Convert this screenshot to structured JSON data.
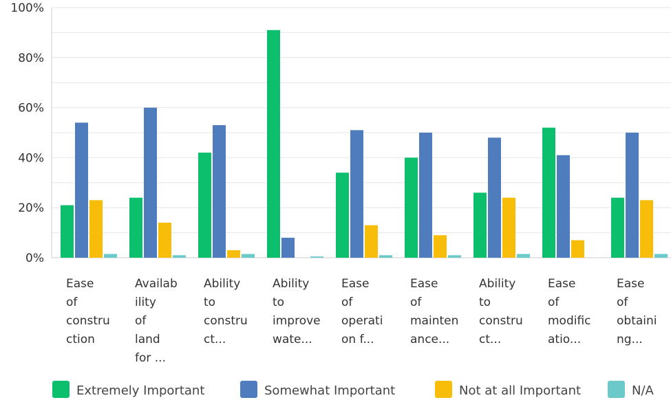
{
  "chart_data": {
    "type": "bar",
    "ylim": [
      0,
      100
    ],
    "yticks": [
      "0%",
      "20%",
      "40%",
      "60%",
      "80%",
      "100%"
    ],
    "ytick_values": [
      0,
      20,
      40,
      60,
      80,
      100
    ],
    "grid": true,
    "legend_position": "bottom",
    "categories": [
      [
        "Ease",
        "of",
        "constru",
        "ction"
      ],
      [
        "Availab",
        "ility",
        "of",
        "land",
        "for ..."
      ],
      [
        "Ability",
        "to",
        "constru",
        "ct..."
      ],
      [
        "Ability",
        "to",
        "improve",
        "wate..."
      ],
      [
        "Ease",
        "of",
        "operati",
        "on f..."
      ],
      [
        "Ease",
        "of",
        "mainten",
        "ance..."
      ],
      [
        "Ability",
        "to",
        "constru",
        "ct..."
      ],
      [
        "Ease",
        "of",
        "modific",
        "atio..."
      ],
      [
        "Ease",
        "of",
        "obtaini",
        "ng..."
      ]
    ],
    "series": [
      {
        "name": "Extremely Important",
        "color": "#0bbf6c",
        "values": [
          21,
          24,
          42,
          91,
          34,
          40,
          26,
          52,
          24
        ]
      },
      {
        "name": "Somewhat Important",
        "color": "#4f7cbd",
        "values": [
          54,
          60,
          53,
          8,
          51,
          50,
          48,
          41,
          50
        ]
      },
      {
        "name": "Not at all Important",
        "color": "#f8bd08",
        "values": [
          23,
          14,
          3,
          0,
          13,
          9,
          24,
          7,
          23
        ]
      },
      {
        "name": "N/A",
        "color": "#6cc9c9",
        "values": [
          1.5,
          1,
          1.5,
          0.5,
          1,
          1,
          1.5,
          0,
          1.5
        ]
      }
    ]
  }
}
